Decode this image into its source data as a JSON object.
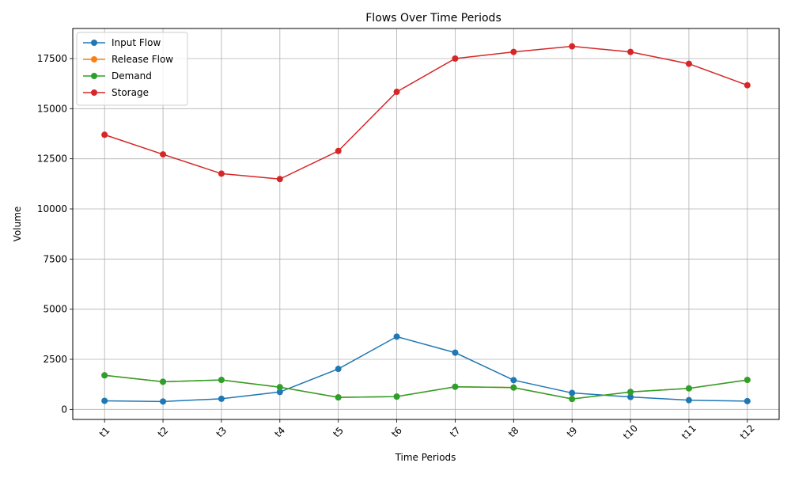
{
  "chart_data": {
    "type": "line",
    "title": "Flows Over Time Periods",
    "xlabel": "Time Periods",
    "ylabel": "Volume",
    "categories": [
      "t1",
      "t2",
      "t3",
      "t4",
      "t5",
      "t6",
      "t7",
      "t8",
      "t9",
      "t10",
      "t11",
      "t12"
    ],
    "ylim": [
      -500,
      19000
    ],
    "yticks": [
      0,
      2500,
      5000,
      7500,
      10000,
      12500,
      15000,
      17500
    ],
    "grid": true,
    "legend_position": "upper-left",
    "series": [
      {
        "name": "Input Flow",
        "color": "#1f77b4",
        "marker": "circle",
        "values": [
          430,
          395,
          530,
          870,
          2020,
          3630,
          2830,
          1460,
          820,
          620,
          460,
          415
        ]
      },
      {
        "name": "Release Flow",
        "color": "#ff7f0e",
        "marker": "circle",
        "values": [
          1700,
          1380,
          1470,
          1110,
          600,
          640,
          1130,
          1090,
          520,
          870,
          1050,
          1470
        ]
      },
      {
        "name": "Demand",
        "color": "#2ca02c",
        "marker": "circle",
        "values": [
          1700,
          1380,
          1470,
          1110,
          600,
          640,
          1130,
          1090,
          520,
          870,
          1050,
          1470
        ]
      },
      {
        "name": "Storage",
        "color": "#d62728",
        "marker": "circle",
        "values": [
          13700,
          12720,
          11760,
          11490,
          12890,
          15840,
          17500,
          17830,
          18110,
          17830,
          17240,
          16170
        ]
      }
    ]
  }
}
